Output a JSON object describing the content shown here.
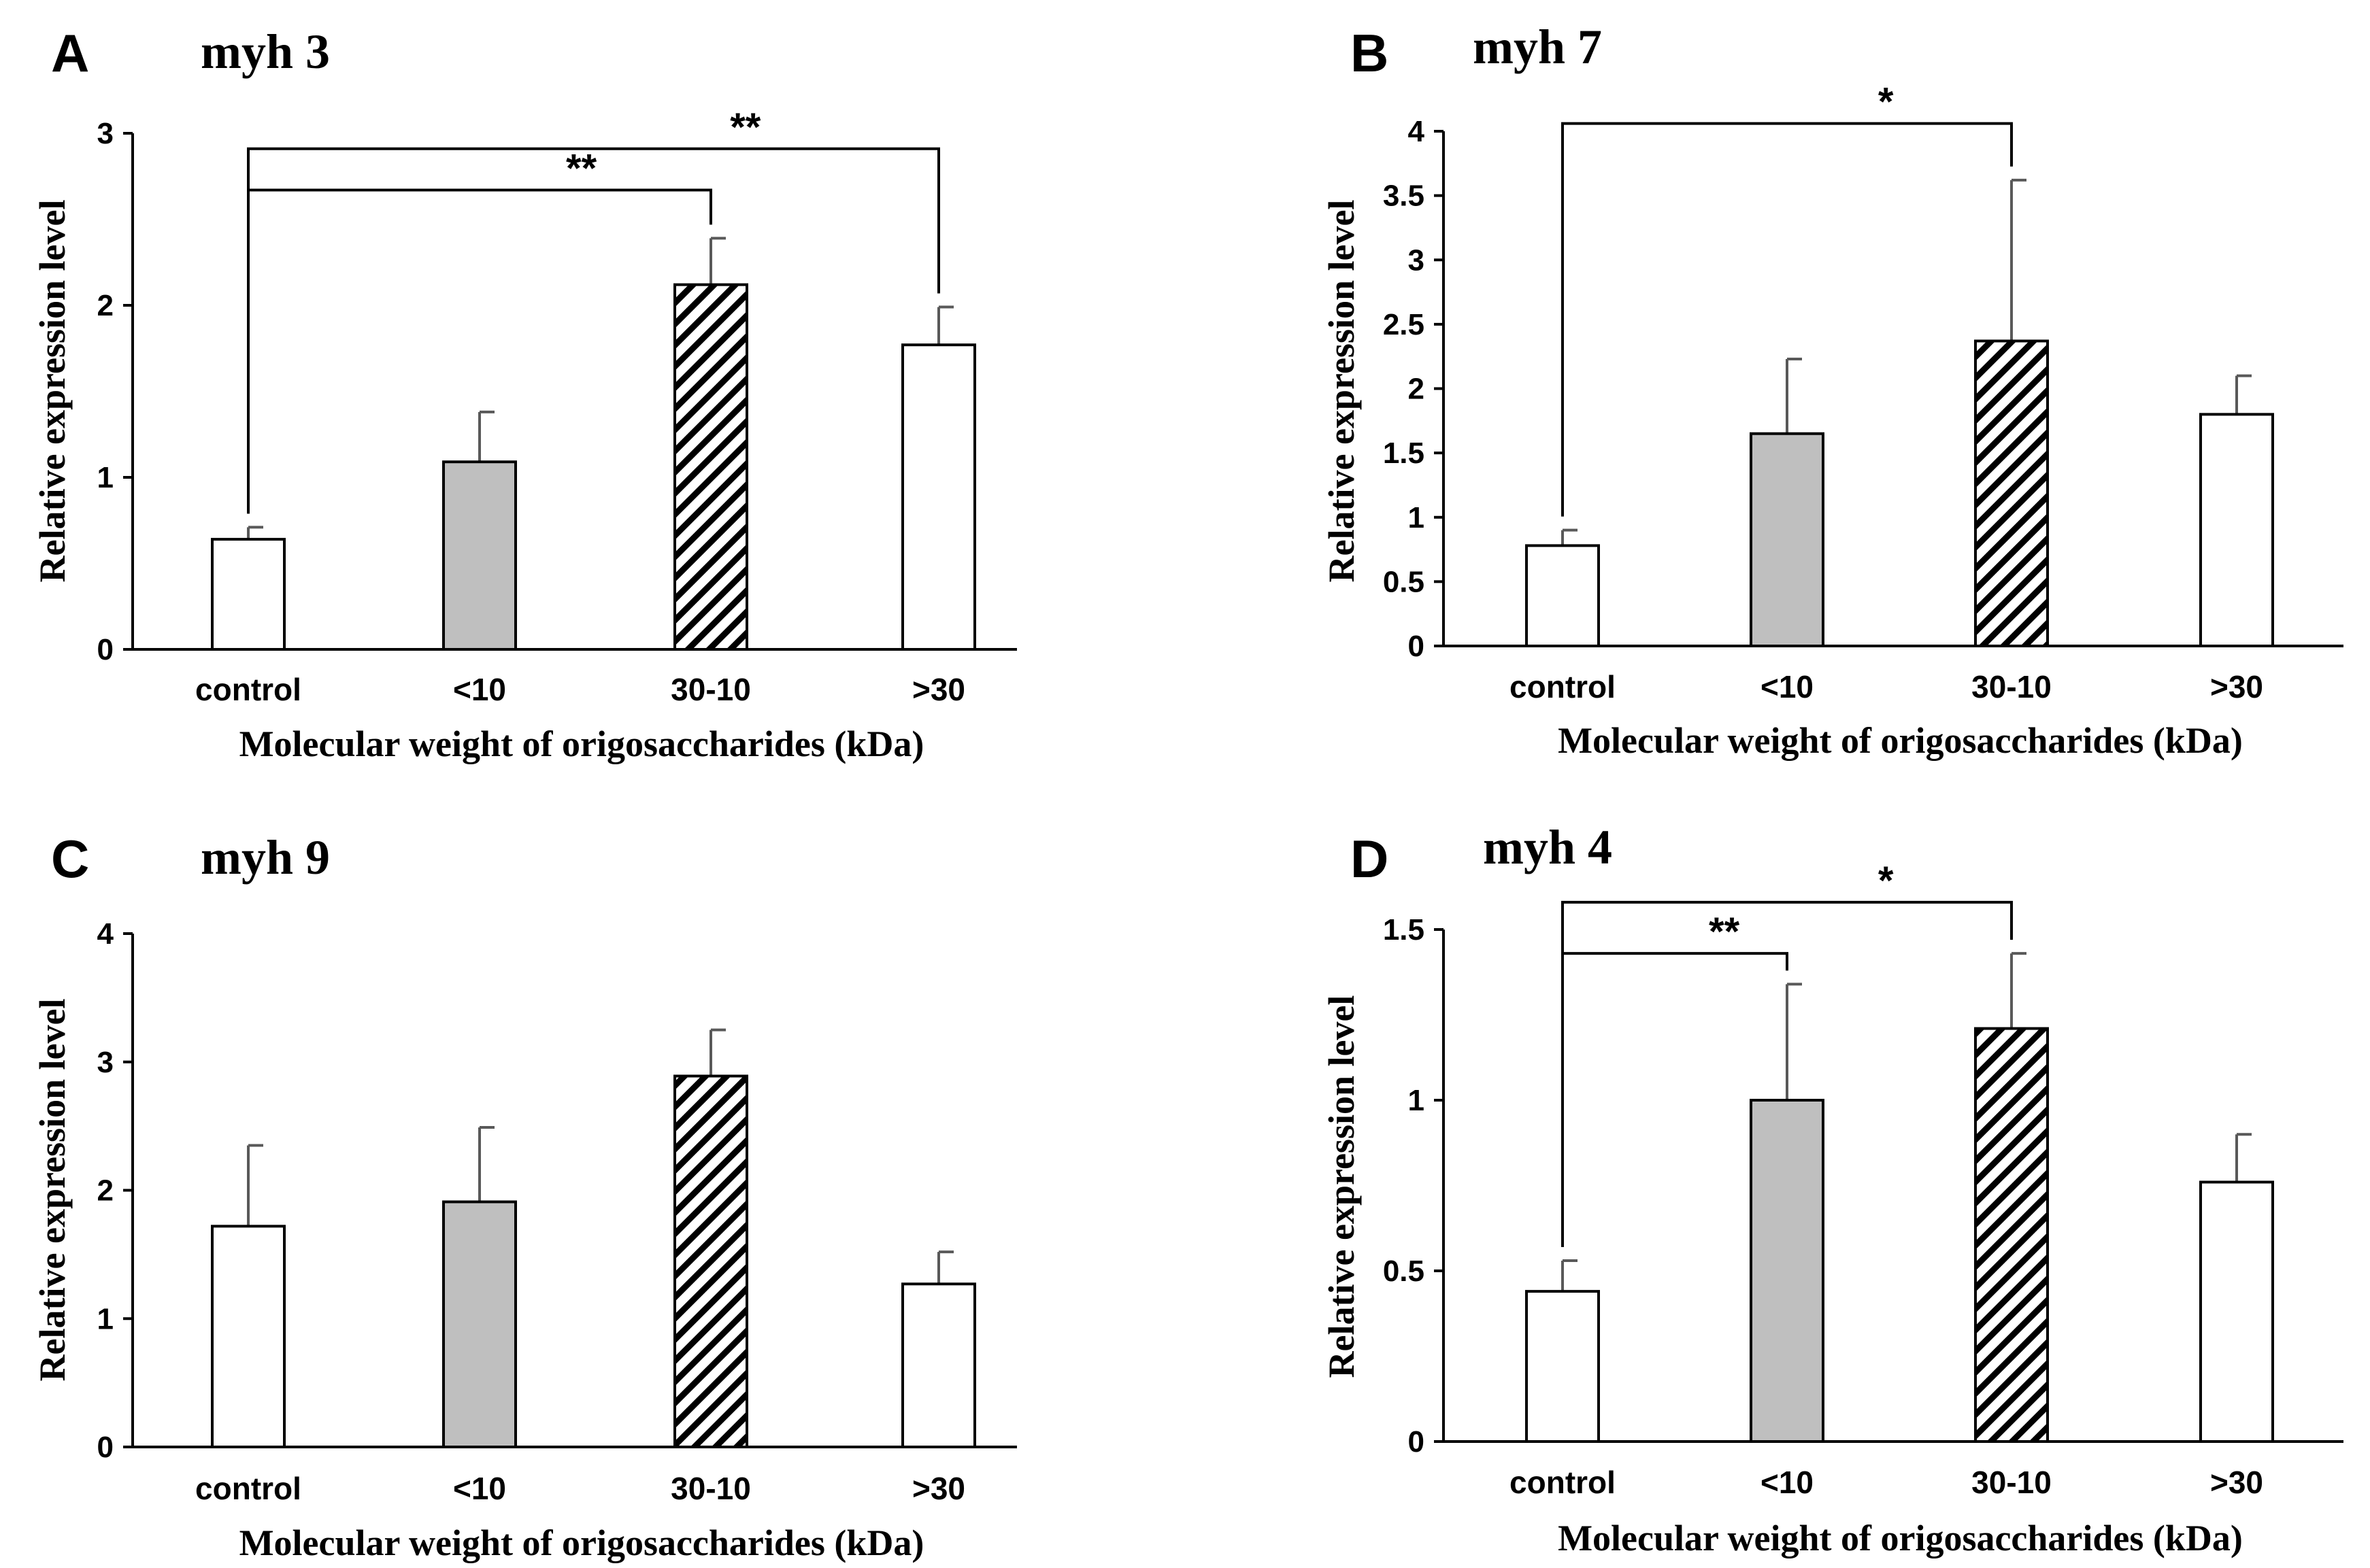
{
  "chart_data": [
    {
      "type": "bar",
      "panel": "A",
      "title": "myh 3",
      "xlabel": "Molecular weight of origosaccharides (kDa)",
      "ylabel": "Relative expression level",
      "categories": [
        "control",
        "<10",
        "30-10",
        ">30"
      ],
      "values": [
        0.64,
        1.09,
        2.12,
        1.77
      ],
      "errors": [
        0.07,
        0.29,
        0.27,
        0.22
      ],
      "ylim": [
        0,
        3
      ],
      "yticks": [
        "0",
        "1",
        "2",
        "3"
      ],
      "significance": [
        {
          "from": 0,
          "to": 2,
          "label": "**",
          "level": 2.67
        },
        {
          "from": 0,
          "to": 3,
          "label": "**",
          "level": 2.91
        }
      ]
    },
    {
      "type": "bar",
      "panel": "B",
      "title": "myh 7",
      "xlabel": "Molecular weight of origosaccharides (kDa)",
      "ylabel": "Relative expression level",
      "categories": [
        "control",
        "<10",
        "30-10",
        ">30"
      ],
      "values": [
        0.78,
        1.65,
        2.37,
        1.8
      ],
      "errors": [
        0.12,
        0.58,
        1.25,
        0.3
      ],
      "ylim": [
        0,
        4
      ],
      "yticks": [
        "0",
        "0.5",
        "1",
        "1.5",
        "2",
        "2.5",
        "3",
        "3.5",
        "4"
      ],
      "significance": [
        {
          "from": 0,
          "to": 2,
          "label": "*",
          "level": 4.06
        }
      ]
    },
    {
      "type": "bar",
      "panel": "C",
      "title": "myh 9",
      "xlabel": "Molecular weight of origosaccharides (kDa)",
      "ylabel": "Relative expression level",
      "categories": [
        "control",
        "<10",
        "30-10",
        ">30"
      ],
      "values": [
        1.72,
        1.91,
        2.89,
        1.27
      ],
      "errors": [
        0.63,
        0.58,
        0.36,
        0.25
      ],
      "ylim": [
        0,
        4
      ],
      "yticks": [
        "0",
        "1",
        "2",
        "3",
        "4"
      ],
      "significance": []
    },
    {
      "type": "bar",
      "panel": "D",
      "title": "myh 4",
      "xlabel": "Molecular weight of origosaccharides (kDa)",
      "ylabel": "Relative expression level",
      "categories": [
        "control",
        "<10",
        "30-10",
        ">30"
      ],
      "values": [
        0.44,
        1.0,
        1.21,
        0.76
      ],
      "errors": [
        0.09,
        0.34,
        0.22,
        0.14
      ],
      "ylim": [
        0,
        1.5
      ],
      "yticks": [
        "0",
        "0.5",
        "1",
        "1.5"
      ],
      "significance": [
        {
          "from": 0,
          "to": 1,
          "label": "**",
          "level": 1.43
        },
        {
          "from": 0,
          "to": 2,
          "label": "*",
          "level": 1.58
        }
      ]
    }
  ],
  "styles": {
    "bar_fills": [
      "white",
      "#bfbfbf",
      "hatch",
      "white"
    ],
    "bar_stroke": "#000000",
    "error_color": "#595959"
  }
}
